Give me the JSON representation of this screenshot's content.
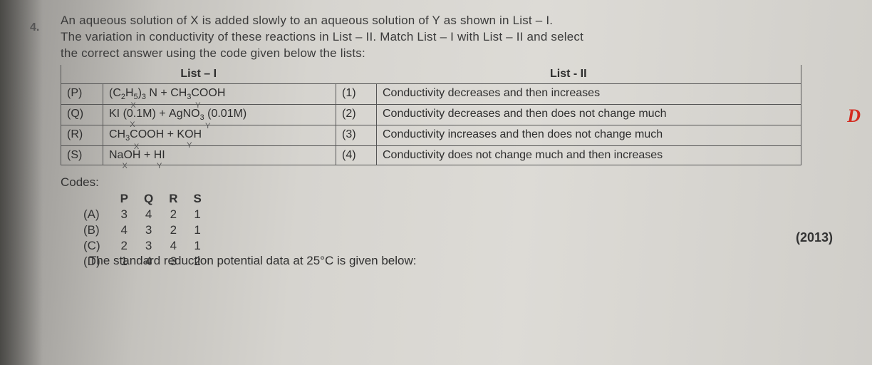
{
  "question_number": "4.",
  "question_text_lines": [
    "An aqueous solution of X is added slowly to an aqueous solution of Y as shown in List – I.",
    "The variation in conductivity of these reactions in List – II. Match List – I with List – II and select",
    "the correct answer using the code given below the lists:"
  ],
  "table": {
    "header_left": "List – I",
    "header_right": "List - II",
    "rows": [
      {
        "l_label": "(P)",
        "l_html": "(C₂H₅)₃ N + CH₃COOH",
        "l_x_tag": "X",
        "l_y_tag": "Y",
        "r_label": "(1)",
        "r_text": "Conductivity decreases and then increases"
      },
      {
        "l_label": "(Q)",
        "l_html": "KI (0.1M) + AgNO₃ (0.01M)",
        "l_x_tag": "X",
        "l_y_tag": "Y",
        "r_label": "(2)",
        "r_text": "Conductivity decreases and then does not change much"
      },
      {
        "l_label": "(R)",
        "l_html": "CH₃COOH + KOH",
        "l_x_tag": "X",
        "l_y_tag": "Y",
        "r_label": "(3)",
        "r_text": "Conductivity increases and then does not change much"
      },
      {
        "l_label": "(S)",
        "l_html": "NaOH + HI",
        "l_x_tag": "X",
        "l_y_tag": "Y",
        "r_label": "(4)",
        "r_text": "Conductivity does not change much and then increases"
      }
    ]
  },
  "codes": {
    "label": "Codes:",
    "headers": [
      "P",
      "Q",
      "R",
      "S"
    ],
    "options": [
      {
        "opt": "(A)",
        "vals": [
          "3",
          "4",
          "2",
          "1"
        ]
      },
      {
        "opt": "(B)",
        "vals": [
          "4",
          "3",
          "2",
          "1"
        ]
      },
      {
        "opt": "(C)",
        "vals": [
          "2",
          "3",
          "4",
          "1"
        ]
      },
      {
        "opt": "(D)",
        "vals": [
          "1",
          "4",
          "3",
          "2"
        ]
      }
    ]
  },
  "year": "(2013)",
  "next_question_fragment": "The standard reduction potential data at 25°C is given below:",
  "annotation_letter": "D",
  "colors": {
    "text": "#333333",
    "border": "#555555",
    "annotation": "#d42a1f"
  }
}
